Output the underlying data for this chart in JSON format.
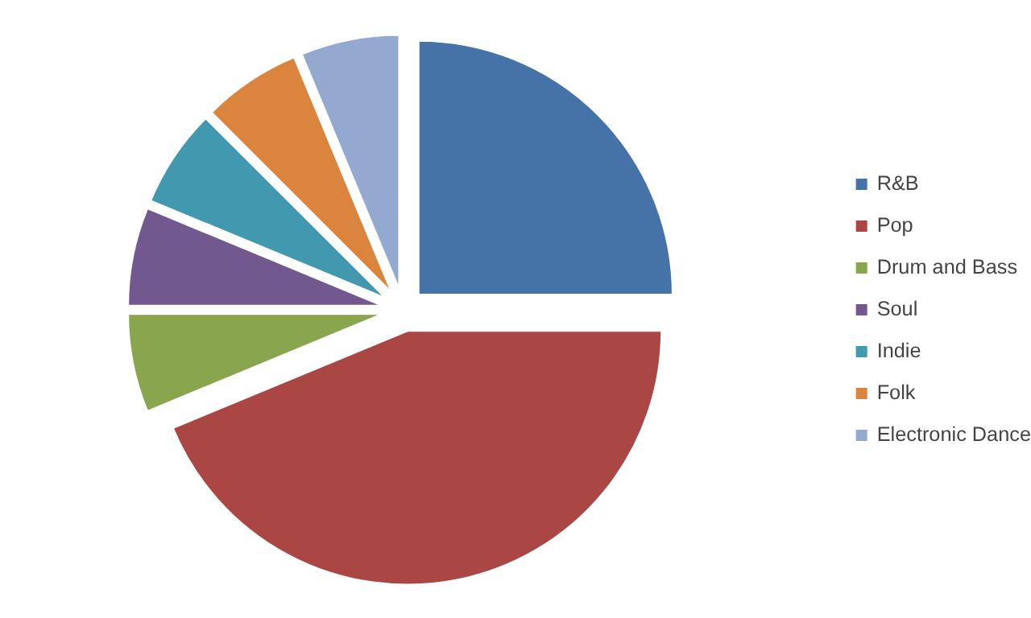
{
  "chart_data": {
    "type": "pie",
    "categories": [
      "R&B",
      "Pop",
      "Drum and Bass",
      "Soul",
      "Indie",
      "Folk",
      "Electronic Dance"
    ],
    "values": [
      25,
      43.75,
      6.25,
      6.25,
      6.25,
      6.25,
      6.25
    ],
    "colors": [
      "#4572a7",
      "#aa4643",
      "#89a54e",
      "#71588f",
      "#4198af",
      "#db843d",
      "#93a9cf"
    ],
    "legend": "right"
  }
}
